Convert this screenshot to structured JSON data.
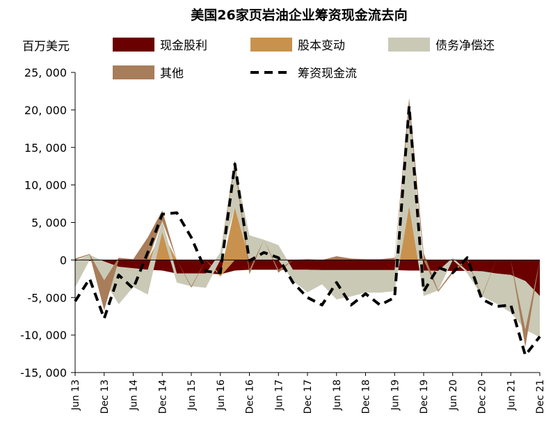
{
  "chart_data": {
    "type": "area",
    "title": "美国26家页岩油企业筹资现金流去向",
    "ylabel": "百万美元",
    "xlabel": "",
    "ylim": [
      -15000,
      25000
    ],
    "yticks": [
      25000,
      20000,
      15000,
      10000,
      5000,
      0,
      -5000,
      -10000,
      -15000
    ],
    "ytick_labels": [
      "25, 000",
      "20, 000",
      "15, 000",
      "10, 000",
      "5, 000",
      "0",
      "-5, 000",
      "-10, 000",
      "-15, 000"
    ],
    "x_tick_labels": [
      "Jun 13",
      "Dec 13",
      "Jun 14",
      "Dec 14",
      "Jun 15",
      "Jun 16",
      "Dec 16",
      "Jun 17",
      "Dec 17",
      "Jun 18",
      "Dec 18",
      "Jun 19",
      "Dec 19",
      "Jun 20",
      "Dec 20",
      "Jun 21",
      "Dec 21"
    ],
    "x_tick_index": [
      0,
      2,
      4,
      6,
      8,
      10,
      12,
      14,
      16,
      18,
      20,
      22,
      24,
      26,
      28,
      30,
      32
    ],
    "x_count": 33,
    "legend_position": "top",
    "grid": false,
    "series": [
      {
        "name": "现金股利",
        "color": "#6b0000",
        "kind": "area",
        "values": [
          -150,
          -150,
          -200,
          -900,
          -1100,
          -1300,
          -1400,
          -1800,
          -1800,
          -1800,
          -1900,
          -1400,
          -1300,
          -1300,
          -1300,
          -1300,
          -1300,
          -1350,
          -1350,
          -1350,
          -1350,
          -1350,
          -1350,
          -1400,
          -1400,
          -1450,
          -1450,
          -1450,
          -1500,
          -1800,
          -2000,
          -2800,
          -4800
        ]
      },
      {
        "name": "股本变动",
        "color": "#c8924e",
        "kind": "area",
        "values": [
          0,
          0,
          0,
          0,
          0,
          0,
          3700,
          0,
          0,
          0,
          -300,
          7000,
          0,
          0,
          0,
          0,
          0,
          0,
          0,
          0,
          0,
          0,
          0,
          7100,
          0,
          0,
          0,
          0,
          0,
          0,
          0,
          0,
          0
        ]
      },
      {
        "name": "债务净偿还",
        "color": "#c9c9b6",
        "kind": "area",
        "values": [
          -3500,
          700,
          -2500,
          -5000,
          -2500,
          -3300,
          1500,
          -1200,
          -1700,
          -1900,
          1000,
          5500,
          3300,
          2700,
          2000,
          -1500,
          -3000,
          -1900,
          -3900,
          -3500,
          -3000,
          -3000,
          -2800,
          13000,
          -3400,
          -2600,
          300,
          -300,
          -3300,
          -4000,
          -5000,
          -6500,
          -5500
        ]
      },
      {
        "name": "其他",
        "color": "#a87d5a",
        "kind": "area",
        "values": [
          200,
          100,
          -4000,
          300,
          100,
          3000,
          1400,
          0,
          -200,
          0,
          0,
          800,
          -600,
          0,
          -400,
          0,
          100,
          0,
          500,
          200,
          100,
          100,
          300,
          1500,
          900,
          -200,
          -300,
          200,
          -200,
          0,
          0,
          -2300,
          0
        ]
      },
      {
        "name": "筹资现金流",
        "color": "#000000",
        "kind": "dashed-line",
        "values": [
          -5500,
          -2500,
          -7800,
          -2000,
          -3800,
          1000,
          6100,
          6300,
          3000,
          -1500,
          -1700,
          12800,
          -100,
          1000,
          300,
          -3000,
          -5000,
          -6000,
          -3000,
          -6000,
          -4500,
          -6000,
          -5000,
          20500,
          -4200,
          -1000,
          -1700,
          300,
          -5200,
          -6200,
          -6000,
          -12700,
          -10200
        ]
      }
    ]
  }
}
